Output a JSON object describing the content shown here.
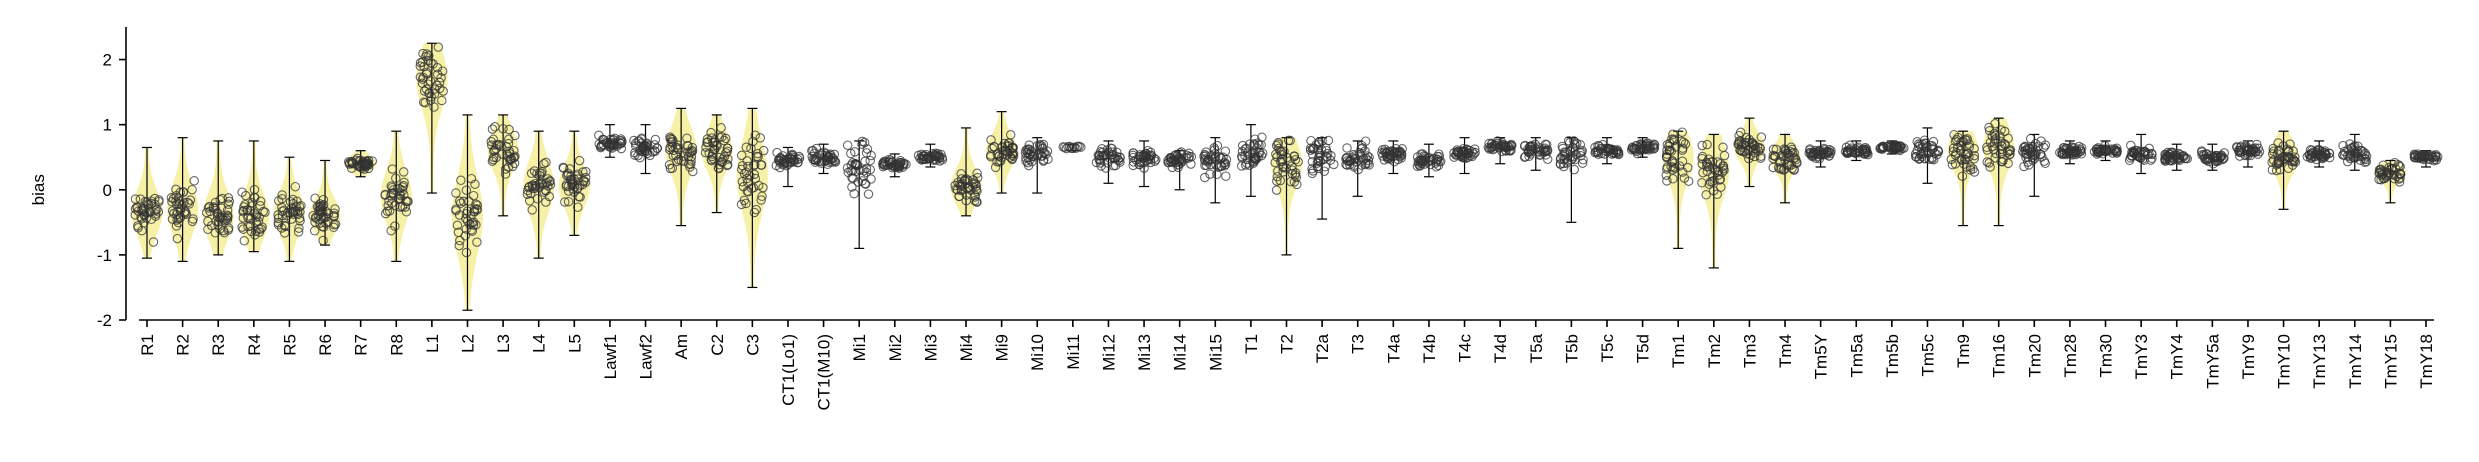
{
  "chart_data": {
    "type": "violin-strip",
    "title": "",
    "xlabel": "",
    "ylabel": "bias",
    "ylim": [
      -2,
      2.5
    ],
    "yticks": [
      -2,
      -1,
      0,
      1,
      2
    ],
    "grid": false,
    "legend": "none",
    "colors": {
      "violin": "#f4ec8a",
      "points": "#333333",
      "axis": "#000000"
    },
    "categories": [
      "R1",
      "R2",
      "R3",
      "R4",
      "R5",
      "R6",
      "R7",
      "R8",
      "L1",
      "L2",
      "L3",
      "L4",
      "L5",
      "Lawf1",
      "Lawf2",
      "Am",
      "C2",
      "C3",
      "CT1(Lo1)",
      "CT1(M10)",
      "Mi1",
      "Mi2",
      "Mi3",
      "Mi4",
      "Mi9",
      "Mi10",
      "Mi11",
      "Mi12",
      "Mi13",
      "Mi14",
      "Mi15",
      "T1",
      "T2",
      "T2a",
      "T3",
      "T4a",
      "T4b",
      "T4c",
      "T4d",
      "T5a",
      "T5b",
      "T5c",
      "T5d",
      "Tm1",
      "Tm2",
      "Tm3",
      "Tm4",
      "Tm5Y",
      "Tm5a",
      "Tm5b",
      "Tm5c",
      "Tm9",
      "Tm16",
      "Tm20",
      "Tm28",
      "Tm30",
      "TmY3",
      "TmY4",
      "TmY5a",
      "TmY9",
      "TmY10",
      "TmY13",
      "TmY14",
      "TmY15",
      "TmY18"
    ],
    "median": [
      -0.35,
      -0.3,
      -0.4,
      -0.4,
      -0.35,
      -0.4,
      0.4,
      -0.1,
      1.7,
      -0.4,
      0.6,
      0.05,
      0.05,
      0.7,
      0.65,
      0.6,
      0.6,
      0.2,
      0.45,
      0.5,
      0.35,
      0.4,
      0.5,
      0.05,
      0.6,
      0.55,
      0.65,
      0.5,
      0.5,
      0.45,
      0.45,
      0.55,
      0.4,
      0.55,
      0.5,
      0.55,
      0.45,
      0.55,
      0.65,
      0.6,
      0.55,
      0.6,
      0.65,
      0.5,
      0.3,
      0.65,
      0.5,
      0.55,
      0.6,
      0.65,
      0.6,
      0.6,
      0.65,
      0.55,
      0.6,
      0.6,
      0.55,
      0.5,
      0.5,
      0.6,
      0.5,
      0.55,
      0.55,
      0.25,
      0.5
    ],
    "min": [
      -1.05,
      -1.1,
      -1.0,
      -0.95,
      -1.1,
      -0.85,
      0.2,
      -1.1,
      -0.05,
      -1.85,
      -0.4,
      -1.05,
      -0.7,
      0.5,
      0.25,
      -0.55,
      -0.35,
      -1.5,
      0.05,
      0.25,
      -0.9,
      0.2,
      0.35,
      -0.4,
      -0.05,
      -0.05,
      0.6,
      0.1,
      0.05,
      0.0,
      -0.2,
      -0.1,
      -1.0,
      -0.45,
      -0.1,
      0.25,
      0.2,
      0.25,
      0.4,
      0.3,
      -0.5,
      0.4,
      0.5,
      -0.9,
      -1.2,
      0.05,
      -0.2,
      0.35,
      0.45,
      0.55,
      0.1,
      -0.55,
      -0.55,
      -0.1,
      0.4,
      0.45,
      0.25,
      0.3,
      0.3,
      0.35,
      -0.3,
      0.35,
      0.3,
      -0.2,
      0.35
    ],
    "max": [
      0.65,
      0.8,
      0.75,
      0.75,
      0.5,
      0.45,
      0.6,
      0.9,
      2.25,
      1.15,
      1.15,
      0.9,
      0.9,
      1.0,
      1.0,
      1.25,
      1.15,
      1.25,
      0.65,
      0.7,
      0.75,
      0.55,
      0.7,
      0.95,
      1.2,
      0.8,
      0.7,
      0.75,
      0.75,
      0.6,
      0.8,
      1.0,
      0.8,
      0.8,
      0.75,
      0.75,
      0.7,
      0.8,
      0.8,
      0.8,
      0.8,
      0.8,
      0.8,
      0.9,
      0.85,
      1.1,
      0.85,
      0.75,
      0.75,
      0.75,
      0.95,
      0.9,
      1.1,
      0.85,
      0.75,
      0.75,
      0.85,
      0.7,
      0.7,
      0.75,
      0.9,
      0.75,
      0.85,
      0.45,
      0.6
    ],
    "violin": [
      true,
      true,
      true,
      true,
      true,
      true,
      true,
      true,
      true,
      true,
      true,
      true,
      true,
      false,
      false,
      true,
      true,
      true,
      false,
      false,
      false,
      false,
      false,
      true,
      true,
      false,
      false,
      false,
      false,
      false,
      false,
      false,
      true,
      false,
      false,
      false,
      false,
      false,
      false,
      false,
      false,
      false,
      false,
      true,
      true,
      true,
      true,
      false,
      false,
      false,
      false,
      true,
      true,
      false,
      false,
      false,
      false,
      false,
      false,
      false,
      true,
      false,
      false,
      true,
      false
    ]
  }
}
